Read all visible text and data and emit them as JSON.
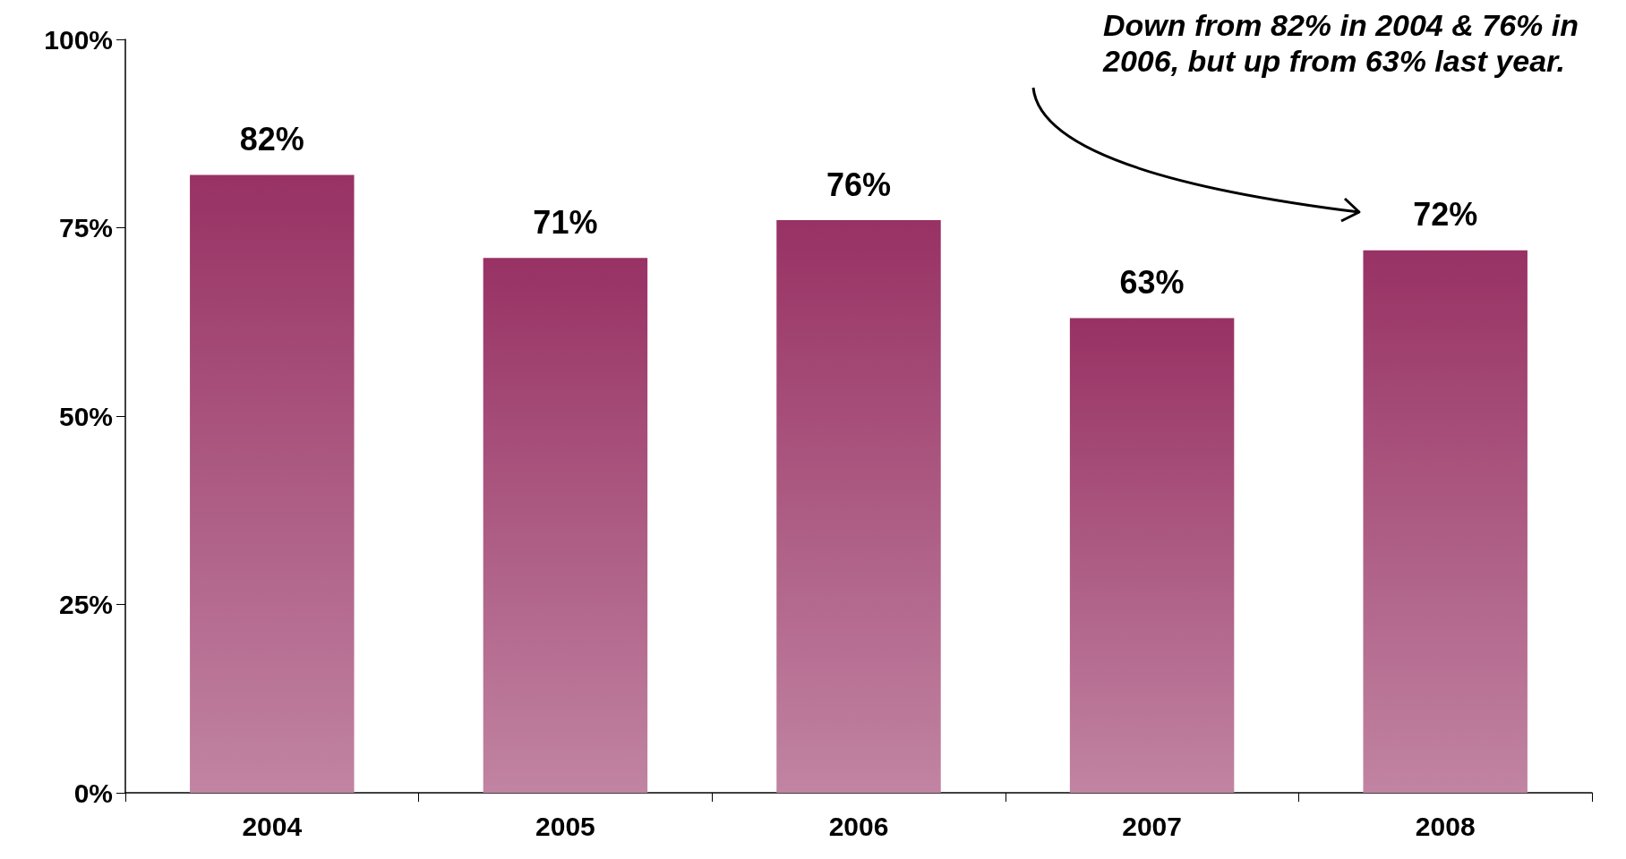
{
  "chart_data": {
    "type": "bar",
    "categories": [
      "2004",
      "2005",
      "2006",
      "2007",
      "2008"
    ],
    "values": [
      82,
      71,
      76,
      63,
      72
    ],
    "value_labels": [
      "82%",
      "71%",
      "76%",
      "63%",
      "72%"
    ],
    "color": "#983264",
    "ylim": [
      0,
      100
    ],
    "yticks": [
      {
        "value": 0,
        "label": "0%"
      },
      {
        "value": 25,
        "label": "25%"
      },
      {
        "value": 50,
        "label": "50%"
      },
      {
        "value": 75,
        "label": "75%"
      },
      {
        "value": 100,
        "label": "100%"
      }
    ],
    "grid": false,
    "annotations": [
      "Down from 82% in 2004 & 76% in 2006, but up from 63% last year."
    ]
  }
}
